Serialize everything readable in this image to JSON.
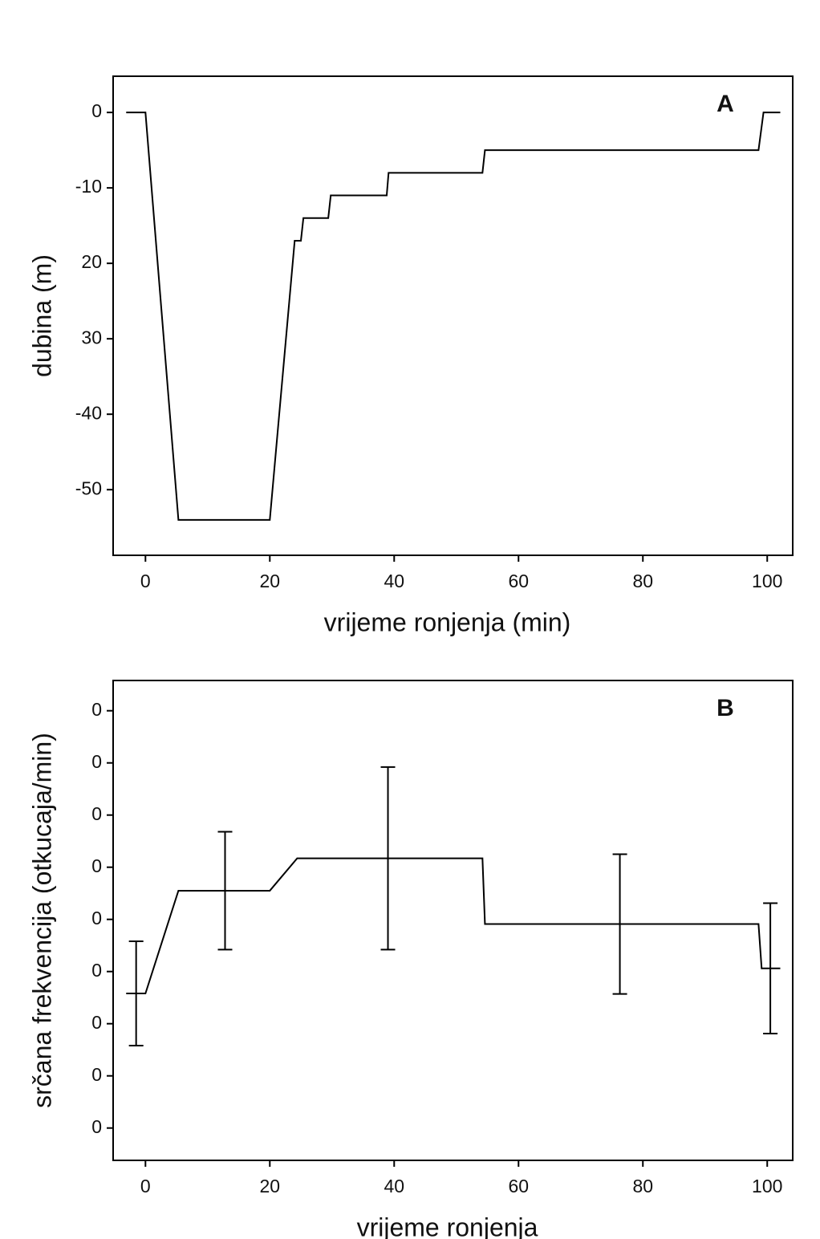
{
  "chart_data": [
    {
      "type": "line",
      "annotation": "A",
      "xlabel": "vrijeme ronjenja (min)",
      "ylabel": "dubina (m)",
      "xlim": [
        -5.2,
        104.1
      ],
      "ylim": [
        -58.7,
        4.8
      ],
      "xticks": [
        0,
        20,
        40,
        60,
        80,
        100
      ],
      "yticks": [
        0,
        -10,
        {
          "value": -20,
          "label": "20"
        },
        {
          "value": -30,
          "label": "30"
        },
        -40,
        -50
      ],
      "color": "#000000",
      "x": [
        -3.1,
        0,
        5.3,
        20,
        24,
        25,
        25.4,
        29.4,
        29.8,
        38.8,
        39.1,
        54.2,
        54.6,
        98.6,
        99.4,
        102.1
      ],
      "values": [
        0,
        0,
        -54,
        -54,
        -17,
        -17,
        -14,
        -14,
        -11,
        -11,
        -8,
        -8,
        -5,
        -5,
        0,
        0
      ]
    },
    {
      "type": "line",
      "annotation": "B",
      "xlabel": "vrijeme ronjenja",
      "ylabel": "srčana frekvencija (otkucaja/min)",
      "xlim": [
        -5.2,
        104.1
      ],
      "ylim": [
        53.8,
        145.8
      ],
      "xticks": [
        0,
        20,
        40,
        60,
        80,
        100
      ],
      "yticks": [
        {
          "value": 140,
          "label": "0"
        },
        {
          "value": 130,
          "label": "0"
        },
        {
          "value": 120,
          "label": "0"
        },
        {
          "value": 110,
          "label": "0"
        },
        {
          "value": 100,
          "label": "0"
        },
        {
          "value": 90,
          "label": "0"
        },
        {
          "value": 80,
          "label": "0"
        },
        {
          "value": 70,
          "label": "0"
        },
        {
          "value": 60,
          "label": "0"
        }
      ],
      "color": "#000000",
      "x": [
        -3.1,
        0,
        5.3,
        20,
        24.4,
        54.2,
        54.6,
        98.6,
        99.1,
        102.1
      ],
      "values": [
        85.8,
        85.8,
        105.5,
        105.5,
        111.7,
        111.7,
        99.1,
        99.1,
        90.6,
        90.6
      ],
      "error_bars": {
        "x": [
          -1.5,
          12.8,
          39,
          76.3,
          100.5
        ],
        "values": [
          85.8,
          105.5,
          111.7,
          99.1,
          90.6
        ],
        "errors": [
          10,
          11.3,
          17.5,
          13.4,
          12.5
        ]
      }
    }
  ]
}
